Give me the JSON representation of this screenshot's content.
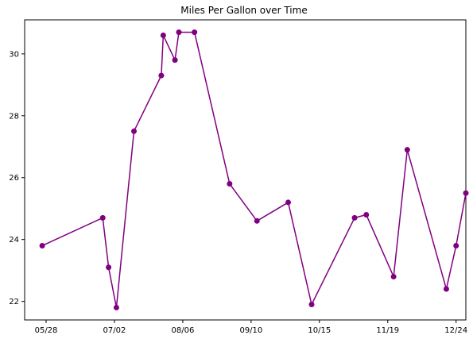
{
  "chart_data": {
    "type": "line",
    "title": "Miles Per Gallon over Time",
    "xlabel": "",
    "ylabel": "",
    "x_axis_type": "date",
    "xlim": [
      "2018-05-17",
      "2018-12-29"
    ],
    "ylim": [
      21.4,
      31.1
    ],
    "x_ticks": [
      {
        "date": "2018-05-28",
        "label": "05/28"
      },
      {
        "date": "2018-07-02",
        "label": "07/02"
      },
      {
        "date": "2018-08-06",
        "label": "08/06"
      },
      {
        "date": "2018-09-10",
        "label": "09/10"
      },
      {
        "date": "2018-10-15",
        "label": "10/15"
      },
      {
        "date": "2018-11-19",
        "label": "11/19"
      },
      {
        "date": "2018-12-24",
        "label": "12/24"
      }
    ],
    "y_ticks": [
      22,
      24,
      26,
      28,
      30
    ],
    "grid": false,
    "legend": false,
    "color": "#800080",
    "marker": "circle",
    "series": [
      {
        "name": "",
        "points": [
          {
            "x": "2018-05-26",
            "y": 23.8
          },
          {
            "x": "2018-06-26",
            "y": 24.7
          },
          {
            "x": "2018-06-29",
            "y": 23.1
          },
          {
            "x": "2018-07-03",
            "y": 21.8
          },
          {
            "x": "2018-07-12",
            "y": 27.5
          },
          {
            "x": "2018-07-26",
            "y": 29.3
          },
          {
            "x": "2018-07-27",
            "y": 30.6
          },
          {
            "x": "2018-08-02",
            "y": 29.8
          },
          {
            "x": "2018-08-04",
            "y": 30.7
          },
          {
            "x": "2018-08-12",
            "y": 30.7
          },
          {
            "x": "2018-08-30",
            "y": 25.8
          },
          {
            "x": "2018-09-13",
            "y": 24.6
          },
          {
            "x": "2018-09-29",
            "y": 25.2
          },
          {
            "x": "2018-10-11",
            "y": 21.9
          },
          {
            "x": "2018-11-02",
            "y": 24.7
          },
          {
            "x": "2018-11-08",
            "y": 24.8
          },
          {
            "x": "2018-11-22",
            "y": 22.8
          },
          {
            "x": "2018-11-29",
            "y": 26.9
          },
          {
            "x": "2018-12-19",
            "y": 22.4
          },
          {
            "x": "2018-12-24",
            "y": 23.8
          },
          {
            "x": "2018-12-29",
            "y": 25.5
          }
        ]
      }
    ]
  }
}
